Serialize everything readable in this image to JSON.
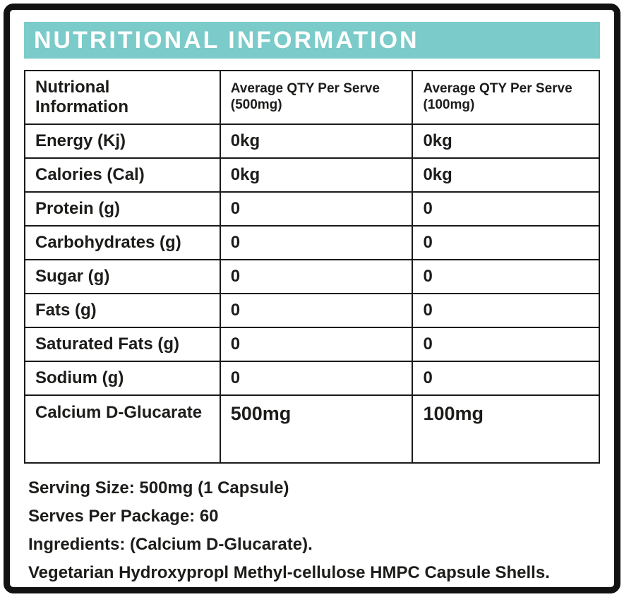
{
  "header": {
    "title": "NUTRITIONAL INFORMATION"
  },
  "table": {
    "col1_header": "Nutrional Information",
    "col2_header_line1": "Average QTY Per Serve",
    "col2_header_line2": "(500mg)",
    "col3_header_line1": "Average QTY Per Serve",
    "col3_header_line2": "(100mg)",
    "rows": [
      {
        "label": "Energy (Kj)",
        "v500": "0kg",
        "v100": "0kg"
      },
      {
        "label": "Calories (Cal)",
        "v500": "0kg",
        "v100": "0kg"
      },
      {
        "label": "Protein (g)",
        "v500": "0",
        "v100": "0"
      },
      {
        "label": "Carbohydrates (g)",
        "v500": "0",
        "v100": "0"
      },
      {
        "label": "Sugar (g)",
        "v500": "0",
        "v100": "0"
      },
      {
        "label": "Fats (g)",
        "v500": "0",
        "v100": "0"
      },
      {
        "label": "Saturated Fats (g)",
        "v500": "0",
        "v100": "0"
      },
      {
        "label": "Sodium (g)",
        "v500": "0",
        "v100": "0"
      },
      {
        "label": "Calcium D-Glucarate",
        "v500": "500mg",
        "v100": "100mg"
      }
    ]
  },
  "footer": {
    "lines": [
      "Serving Size: 500mg (1 Capsule)",
      "Serves Per Package: 60",
      "Ingredients: (Calcium D-Glucarate).",
      "Vegetarian Hydroxypropl Methyl-cellulose HMPC Capsule Shells."
    ]
  },
  "colors": {
    "header_bg": "#7acbc9",
    "header_text": "#ffffff",
    "border": "#1a1a1a",
    "text": "#1c1c1a"
  }
}
